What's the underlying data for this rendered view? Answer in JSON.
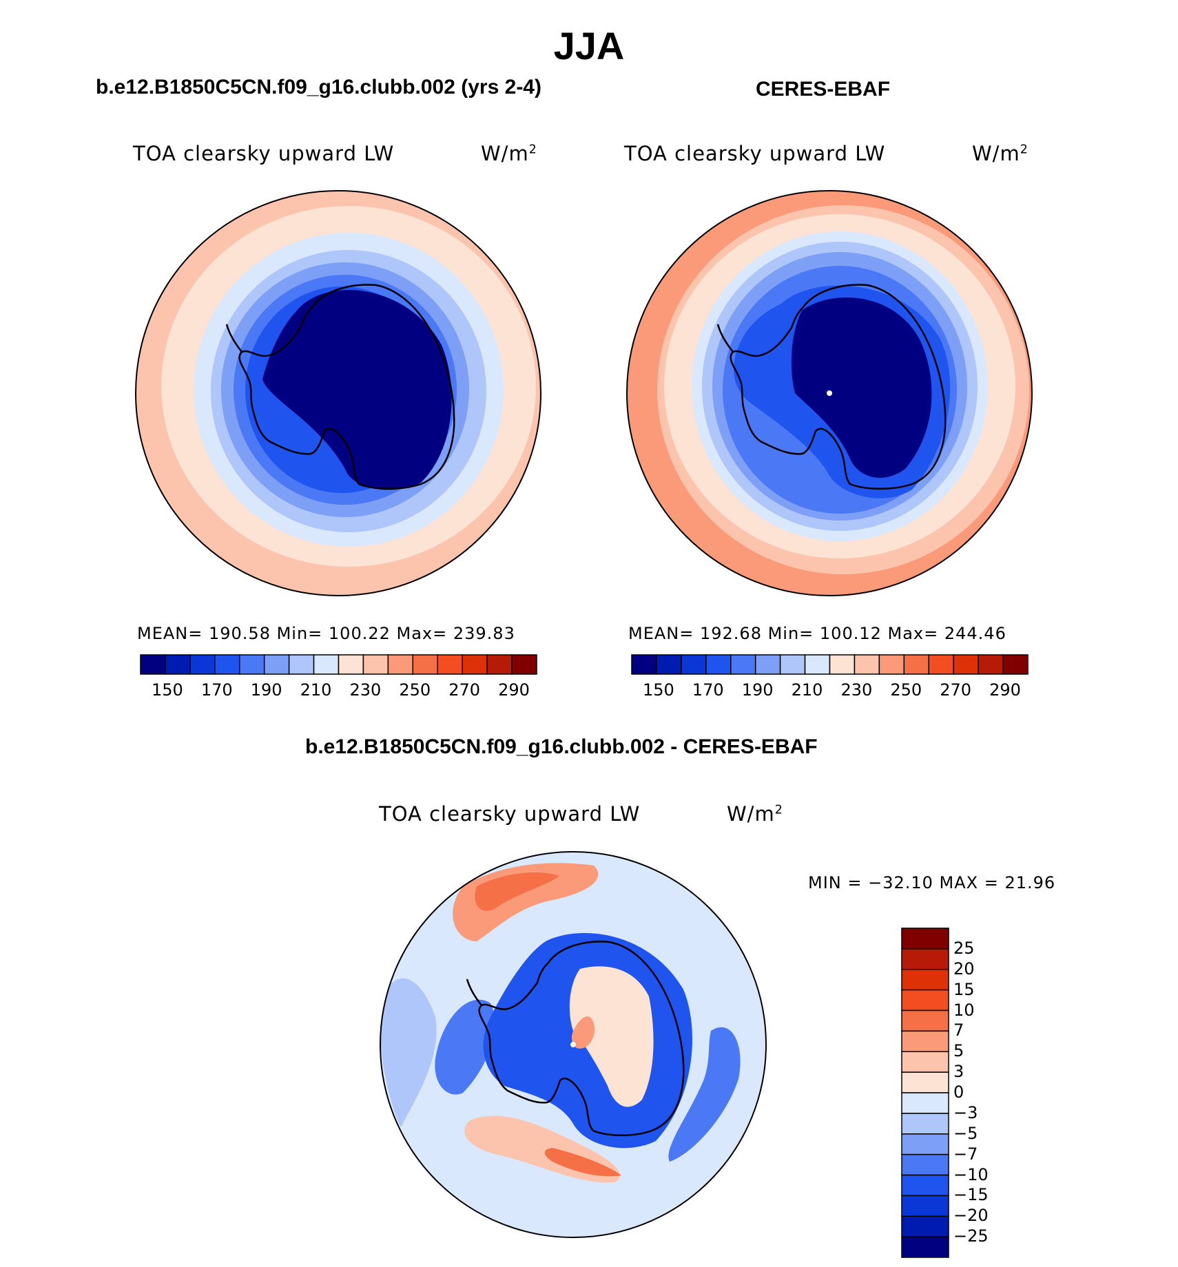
{
  "title": "JJA",
  "panels": [
    {
      "case_title": "b.e12.B1850C5CN.f09_g16.clubb.002 (yrs 2-4)",
      "left_label": "TOA clearsky upward LW",
      "units": "W/m",
      "units_sup": "2",
      "stats": "MEAN= 190.58   Min= 100.22   Max= 239.83",
      "mean": 190.58,
      "min": 100.22,
      "max": 239.83
    },
    {
      "case_title": "CERES-EBAF",
      "left_label": "TOA clearsky upward LW",
      "units": "W/m",
      "units_sup": "2",
      "stats": "MEAN= 192.68   Min= 100.12   Max= 244.46",
      "mean": 192.68,
      "min": 100.12,
      "max": 244.46
    },
    {
      "case_title": "b.e12.B1850C5CN.f09_g16.clubb.002 - CERES-EBAF",
      "left_label": "TOA clearsky upward LW",
      "units": "W/m",
      "units_sup": "2",
      "stats": "MIN = −32.10 MAX =   21.96",
      "min": -32.1,
      "max": 21.96
    }
  ],
  "horizontal_colorbar": {
    "colors": [
      "#000080",
      "#001bb0",
      "#0a37d6",
      "#1f54ee",
      "#4b78f5",
      "#7d9ff6",
      "#afc6fb",
      "#d9e8fd",
      "#fde3d4",
      "#fcc4ac",
      "#fa9a78",
      "#f67047",
      "#f34e22",
      "#df3108",
      "#b51b06",
      "#800000"
    ],
    "tick_labels": [
      "150",
      "170",
      "190",
      "210",
      "230",
      "250",
      "270",
      "290"
    ]
  },
  "vertical_colorbar": {
    "colors": [
      "#000080",
      "#001bb0",
      "#0a37d6",
      "#1f54ee",
      "#4b78f5",
      "#7d9ff6",
      "#afc6fb",
      "#d9e8fd",
      "#fde3d4",
      "#fcc4ac",
      "#fa9a78",
      "#f67047",
      "#f34e22",
      "#df3108",
      "#b51b06",
      "#800000"
    ],
    "tick_labels": [
      "25",
      "20",
      "15",
      "10",
      "7",
      "5",
      "3",
      "0",
      "−3",
      "−5",
      "−7",
      "−10",
      "−15",
      "−20",
      "−25"
    ]
  },
  "map_palette": {
    "c0": "#000080",
    "c1": "#0a37d6",
    "c2": "#1f54ee",
    "c3": "#4b78f5",
    "c4": "#7d9ff6",
    "c5": "#afc6fb",
    "c6": "#d9e8fd",
    "c7": "#fde3d4",
    "c8": "#fcc4ac",
    "c9": "#fa9a78",
    "c10": "#f67047",
    "c11": "#f34e22"
  }
}
